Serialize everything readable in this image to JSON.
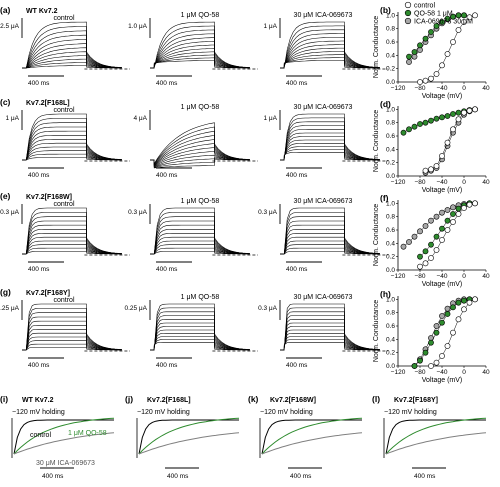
{
  "figure": {
    "rows": [
      {
        "letter": "(a)",
        "title": "WT Kv7.2",
        "cond": [
          "control",
          "1 μM QO-58",
          "30 μM ICA-069673"
        ],
        "scales": [
          "2.5 μA",
          "1.0 μA",
          "1 μA"
        ],
        "time_scale": "400 ms",
        "kinetic": "slow",
        "gv_letter": "(b)"
      },
      {
        "letter": "(c)",
        "title": "Kv7.2[F168L]",
        "cond": [
          "control",
          "1 μM QO-58",
          "30 μM ICA-069673"
        ],
        "scales": [
          "1 μA",
          "4 μA",
          "1 μA"
        ],
        "time_scale": "400 ms",
        "kinetic": "mixed",
        "gv_letter": "(d)"
      },
      {
        "letter": "(e)",
        "title": "Kv7.2[F168W]",
        "cond": [
          "control",
          "1 μM QO-58",
          "30 μM ICA-069673"
        ],
        "scales": [
          "0.3 μA",
          "0.3 μA",
          "0.3 μA"
        ],
        "time_scale": "400 ms",
        "kinetic": "flat",
        "gv_letter": "(f)"
      },
      {
        "letter": "(g)",
        "title": "Kv7.2[F168Y]",
        "cond": [
          "control",
          "1 μM QO-58",
          "30 μM ICA-069673"
        ],
        "scales": [
          "0.25 μA",
          "0.25 μA",
          "0.3 μA"
        ],
        "time_scale": "400 ms",
        "kinetic": "fast",
        "gv_letter": "(h)"
      }
    ],
    "legend": {
      "control": "control",
      "qo58": "QO-58 1 μM",
      "ica": "ICA-069673 30 μM"
    },
    "colors": {
      "control": "#ffffff",
      "qo58": "#2e8b2e",
      "ica": "#a8a8a8"
    },
    "gv_axes": {
      "xlabel": "Voltage (mV)",
      "ylabel": "Norm. Conductance",
      "xticks": [
        "−120",
        "−80",
        "−40",
        "0",
        "40"
      ],
      "yticks": [
        "0.0",
        "0.2",
        "0.4",
        "0.6",
        "0.8",
        "1.0"
      ]
    },
    "bottom": [
      {
        "letter": "(i)",
        "title": "WT Kv7.2",
        "holding": "−120 mV holding",
        "labels": [
          "control",
          "1 μM QO-58",
          "30 μM ICA-069673"
        ],
        "time_scale": "400 ms"
      },
      {
        "letter": "(j)",
        "title": "Kv7.2[F168L]",
        "holding": "−120 mV holding",
        "labels": [],
        "time_scale": "400 ms"
      },
      {
        "letter": "(k)",
        "title": "Kv7.2[F168W]",
        "holding": "−120 mV holding",
        "labels": [],
        "time_scale": "400 ms"
      },
      {
        "letter": "(l)",
        "title": "Kv7.2[F168Y]",
        "holding": "−120 mV holding",
        "labels": [],
        "time_scale": "400 ms"
      }
    ]
  },
  "chart_data": [
    {
      "type": "scatter",
      "panel": "(b)",
      "xlabel": "Voltage (mV)",
      "ylabel": "Norm. Conductance",
      "xlim": [
        -120,
        40
      ],
      "ylim": [
        0,
        1.05
      ],
      "series": [
        {
          "name": "control",
          "x": [
            -80,
            -70,
            -60,
            -50,
            -40,
            -30,
            -20,
            -10,
            0,
            10,
            20
          ],
          "y": [
            0.0,
            0.02,
            0.05,
            0.12,
            0.25,
            0.42,
            0.6,
            0.78,
            0.9,
            0.97,
            1.0
          ]
        },
        {
          "name": "QO-58 1 μM",
          "x": [
            -100,
            -90,
            -80,
            -70,
            -60,
            -50,
            -40,
            -30,
            -20,
            -10,
            0
          ],
          "y": [
            0.38,
            0.45,
            0.55,
            0.65,
            0.75,
            0.84,
            0.9,
            0.95,
            0.98,
            1.0,
            1.0
          ]
        },
        {
          "name": "ICA-069673 30 μM",
          "x": [
            -100,
            -90,
            -80,
            -70,
            -60,
            -50,
            -40,
            -30,
            -20,
            -10,
            0
          ],
          "y": [
            0.3,
            0.38,
            0.48,
            0.6,
            0.7,
            0.8,
            0.88,
            0.94,
            0.98,
            1.0,
            1.0
          ]
        }
      ]
    },
    {
      "type": "scatter",
      "panel": "(d)",
      "xlabel": "Voltage (mV)",
      "ylabel": "Norm. Conductance",
      "xlim": [
        -120,
        40
      ],
      "ylim": [
        0,
        1.05
      ],
      "series": [
        {
          "name": "control",
          "x": [
            -70,
            -60,
            -50,
            -40,
            -30,
            -20,
            -10,
            0,
            10,
            20
          ],
          "y": [
            0.08,
            0.1,
            0.15,
            0.3,
            0.5,
            0.7,
            0.85,
            0.95,
            0.98,
            1.0
          ]
        },
        {
          "name": "QO-58 1 μM",
          "x": [
            -110,
            -100,
            -90,
            -80,
            -70,
            -60,
            -50,
            -40,
            -30,
            -20,
            -10,
            0,
            10,
            20
          ],
          "y": [
            0.65,
            0.7,
            0.74,
            0.78,
            0.8,
            0.83,
            0.86,
            0.88,
            0.9,
            0.93,
            0.95,
            0.97,
            0.99,
            1.0
          ]
        },
        {
          "name": "ICA-069673 30 μM",
          "x": [
            -70,
            -60,
            -50,
            -40,
            -30,
            -20,
            -10,
            0,
            10,
            20
          ],
          "y": [
            0.05,
            0.08,
            0.12,
            0.25,
            0.45,
            0.65,
            0.8,
            0.92,
            0.97,
            1.0
          ]
        }
      ]
    },
    {
      "type": "scatter",
      "panel": "(f)",
      "xlabel": "Voltage (mV)",
      "ylabel": "Norm. Conductance",
      "xlim": [
        -120,
        40
      ],
      "ylim": [
        0,
        1.05
      ],
      "series": [
        {
          "name": "control",
          "x": [
            -80,
            -70,
            -60,
            -50,
            -40,
            -30,
            -20,
            -10,
            0,
            10,
            20
          ],
          "y": [
            0.05,
            0.1,
            0.18,
            0.3,
            0.45,
            0.6,
            0.72,
            0.84,
            0.93,
            0.98,
            1.0
          ]
        },
        {
          "name": "QO-58 1 μM",
          "x": [
            -80,
            -70,
            -60,
            -50,
            -40,
            -30,
            -20,
            -10,
            0,
            10,
            20
          ],
          "y": [
            0.2,
            0.28,
            0.38,
            0.5,
            0.62,
            0.74,
            0.84,
            0.92,
            0.97,
            1.0,
            1.0
          ]
        },
        {
          "name": "ICA-069673 30 μM",
          "x": [
            -110,
            -100,
            -90,
            -80,
            -70,
            -60,
            -50,
            -40,
            -30,
            -20,
            -10,
            0,
            10
          ],
          "y": [
            0.35,
            0.42,
            0.5,
            0.58,
            0.66,
            0.74,
            0.8,
            0.86,
            0.9,
            0.94,
            0.97,
            0.99,
            1.0
          ]
        }
      ]
    },
    {
      "type": "scatter",
      "panel": "(h)",
      "xlabel": "Voltage (mV)",
      "ylabel": "Norm. Conductance",
      "xlim": [
        -120,
        40
      ],
      "ylim": [
        0,
        1.05
      ],
      "series": [
        {
          "name": "control",
          "x": [
            -60,
            -50,
            -40,
            -30,
            -20,
            -10,
            0,
            10,
            20
          ],
          "y": [
            0.0,
            0.05,
            0.15,
            0.3,
            0.5,
            0.7,
            0.85,
            0.95,
            1.0
          ]
        },
        {
          "name": "QO-58 1 μM",
          "x": [
            -90,
            -80,
            -70,
            -60,
            -50,
            -40,
            -30,
            -20,
            -10,
            0,
            10,
            20
          ],
          "y": [
            0.0,
            0.08,
            0.2,
            0.35,
            0.5,
            0.65,
            0.78,
            0.88,
            0.95,
            0.98,
            1.0,
            1.0
          ]
        },
        {
          "name": "ICA-069673 30 μM",
          "x": [
            -90,
            -80,
            -70,
            -60,
            -50,
            -40,
            -30,
            -20,
            -10,
            0,
            10
          ],
          "y": [
            0.0,
            0.1,
            0.25,
            0.42,
            0.6,
            0.75,
            0.86,
            0.94,
            0.98,
            1.0,
            1.0
          ]
        }
      ]
    }
  ]
}
